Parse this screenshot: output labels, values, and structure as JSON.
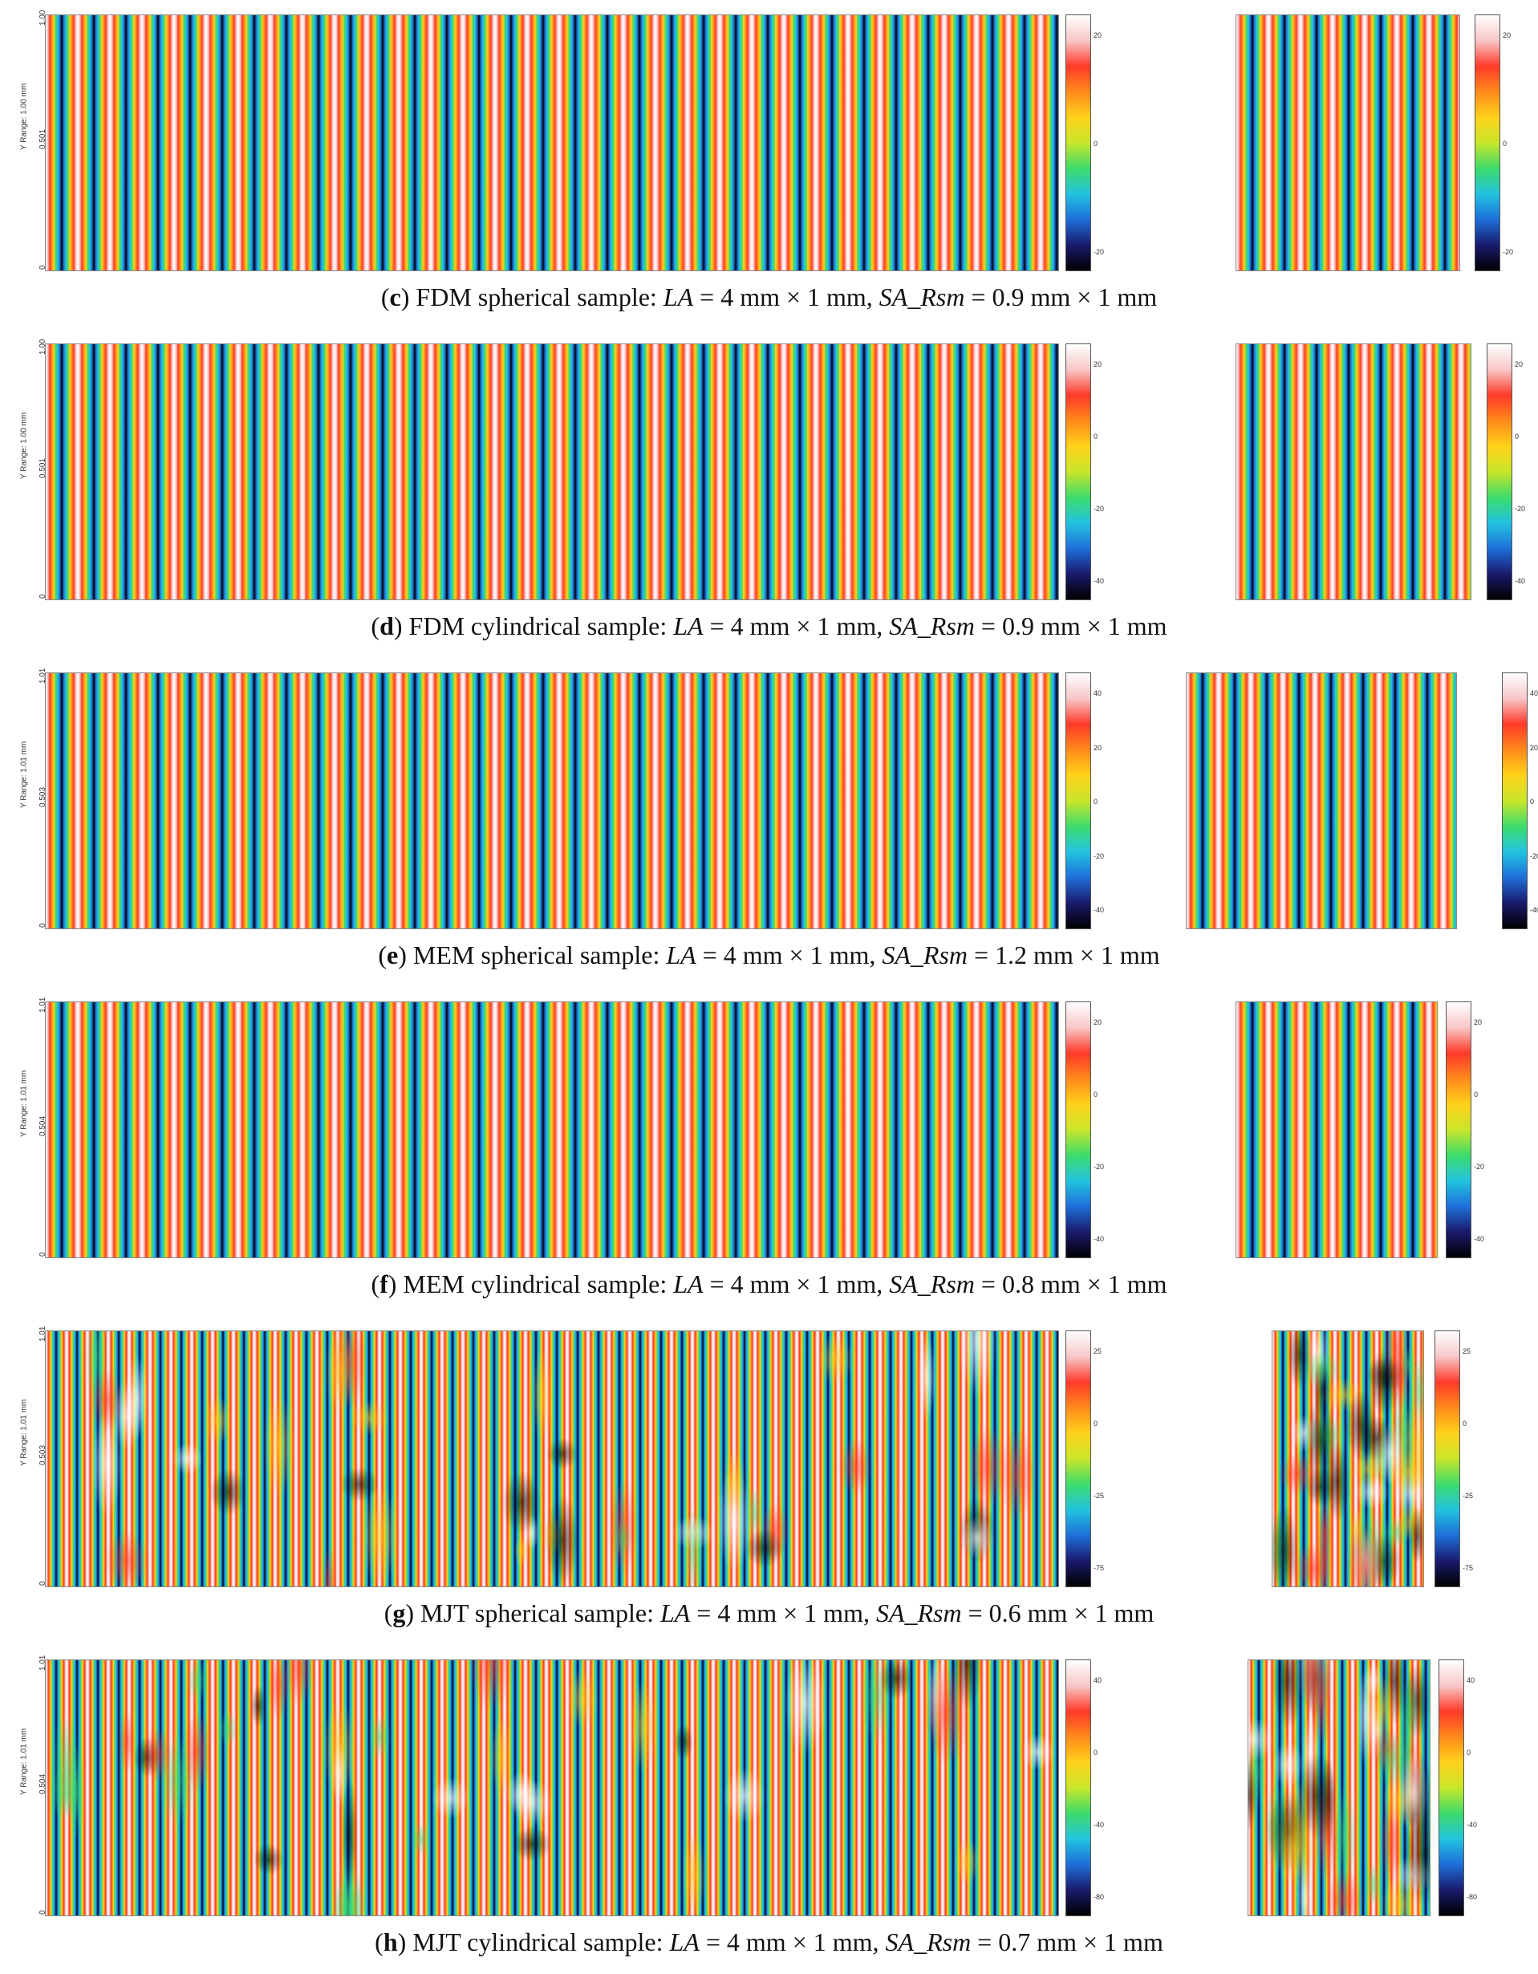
{
  "panels": [
    {
      "letter": "c",
      "label": " FDM spherical sample: ",
      "la_name": "LA",
      "la_value": " = 4 mm × 1 mm, ",
      "sa_name": "SA_Rsm",
      "sa_value": " = 0.9 mm × 1 mm",
      "y_axis_title": "Y Range: 1.00 mm",
      "y_ticks": [
        "1.00",
        "0.501",
        "0"
      ],
      "colorbar_ticks": [
        "20",
        "0",
        "-20"
      ],
      "style": "smooth"
    },
    {
      "letter": "d",
      "label": " FDM cylindrical sample: ",
      "la_name": "LA",
      "la_value": " = 4 mm × 1 mm, ",
      "sa_name": "SA_Rsm",
      "sa_value": " = 0.9 mm × 1 mm",
      "y_axis_title": "Y Range: 1.00 mm",
      "y_ticks": [
        "1.00",
        "0.501",
        "0"
      ],
      "colorbar_ticks": [
        "20",
        "0",
        "-20",
        "-40"
      ],
      "style": "smooth"
    },
    {
      "letter": "e",
      "label": " MEM spherical sample: ",
      "la_name": "LA",
      "la_value": " = 4 mm × 1 mm, ",
      "sa_name": "SA_Rsm",
      "sa_value": " = 1.2 mm × 1 mm",
      "y_axis_title": "Y Range: 1.01 mm",
      "y_ticks": [
        "1.01",
        "0.503",
        "0"
      ],
      "colorbar_ticks": [
        "40",
        "20",
        "0",
        "-20",
        "-40"
      ],
      "style": "smooth"
    },
    {
      "letter": "f",
      "label": " MEM cylindrical sample: ",
      "la_name": "LA",
      "la_value": " = 4 mm × 1 mm, ",
      "sa_name": "SA_Rsm",
      "sa_value": " = 0.8 mm × 1 mm",
      "y_axis_title": "Y Range: 1.01 mm",
      "y_ticks": [
        "1.01",
        "0.504",
        "0"
      ],
      "colorbar_ticks": [
        "20",
        "0",
        "-20",
        "-40"
      ],
      "style": "smooth"
    },
    {
      "letter": "g",
      "label": " MJT spherical sample: ",
      "la_name": "LA",
      "la_value": " = 4 mm × 1 mm, ",
      "sa_name": "SA_Rsm",
      "sa_value": " = 0.6 mm × 1 mm",
      "y_axis_title": "Y Range: 1.01 mm",
      "y_ticks": [
        "1.01",
        "0.503",
        "0"
      ],
      "colorbar_ticks": [
        "25",
        "0",
        "-25",
        "-75"
      ],
      "style": "noisy"
    },
    {
      "letter": "h",
      "label": " MJT cylindrical sample: ",
      "la_name": "LA",
      "la_value": " = 4 mm × 1 mm, ",
      "sa_name": "SA_Rsm",
      "sa_value": " = 0.7 mm × 1 mm",
      "y_axis_title": "Y Range: 1.01 mm",
      "y_ticks": [
        "1.01",
        "0.504",
        "0"
      ],
      "colorbar_ticks": [
        "40",
        "0",
        "-40",
        "-80"
      ],
      "style": "noisy"
    }
  ],
  "colormap": [
    "#000000",
    "#1a1a6e",
    "#1e6fd9",
    "#22c3e0",
    "#3ddc6a",
    "#c8e62a",
    "#ffd21a",
    "#ff8a1a",
    "#ff3a2a",
    "#f7c6c6",
    "#ffffff"
  ]
}
